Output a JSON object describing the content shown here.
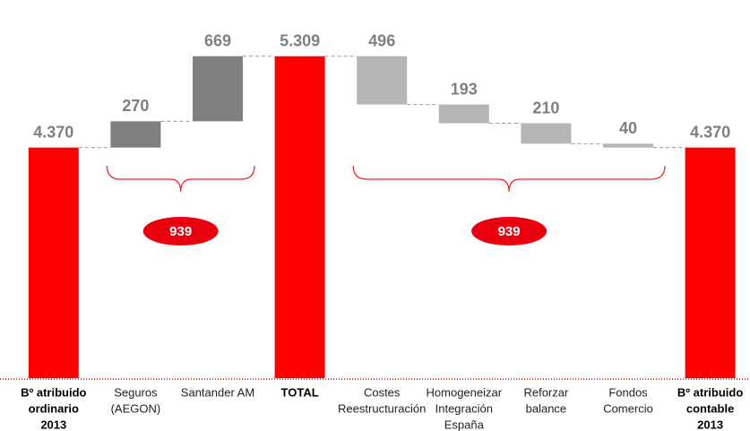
{
  "chart_data": {
    "type": "waterfall",
    "categories": [
      [
        "Bº atribuido",
        "ordinario",
        "2013"
      ],
      [
        "Seguros",
        "(AEGON)"
      ],
      [
        "Santander AM"
      ],
      [
        "TOTAL"
      ],
      [
        "Costes",
        "Reestructuración"
      ],
      [
        "Homogeneizar",
        "Integración",
        "España"
      ],
      [
        "Reforzar",
        "balance"
      ],
      [
        "Fondos",
        "Comercio"
      ],
      [
        "Bº atribuido",
        "contable",
        "2013"
      ]
    ],
    "values": [
      4370,
      270,
      669,
      5309,
      496,
      193,
      210,
      40,
      4370
    ],
    "value_labels": [
      "4.370",
      "270",
      "669",
      "5.309",
      "496",
      "193",
      "210",
      "40",
      "4.370"
    ],
    "kinds": [
      "total",
      "increase",
      "increase",
      "total",
      "decrease",
      "decrease",
      "decrease",
      "decrease",
      "total"
    ],
    "colors": {
      "total": "#ff0000",
      "increase": "#7f7f7f",
      "decrease": "#b5b5b5"
    },
    "ylim": [
      2000,
      5500
    ],
    "annotations": [
      {
        "text": "939",
        "from": 1,
        "to": 2
      },
      {
        "text": "939",
        "from": 4,
        "to": 7
      }
    ]
  }
}
